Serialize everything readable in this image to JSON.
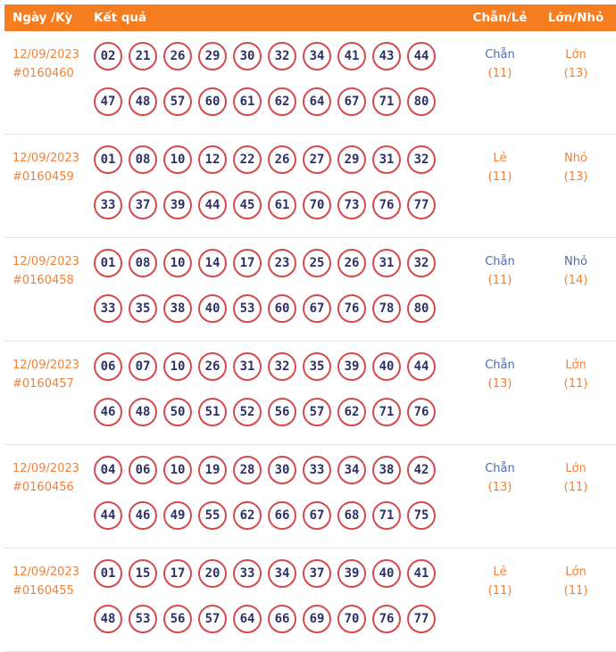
{
  "colors": {
    "header_bg": "#f57c1f",
    "text_orange": "#ef8237",
    "label_blue": "#5069a8",
    "number_navy": "#2d3166",
    "circle_border": "#d4494d",
    "divider": "#e5e5e5"
  },
  "header": {
    "col_date": "Ngày /Kỳ",
    "col_result": "Kết quả",
    "col_chan_le": "Chẵn/Lẻ",
    "col_lon_nho": "Lớn/Nhỏ"
  },
  "rows": [
    {
      "date": "12/09/2023",
      "draw_id": "#0160460",
      "numbers_line1": [
        "02",
        "21",
        "26",
        "29",
        "30",
        "32",
        "34",
        "41",
        "43",
        "44"
      ],
      "numbers_line2": [
        "47",
        "48",
        "57",
        "60",
        "61",
        "62",
        "64",
        "67",
        "71",
        "80"
      ],
      "chan_le": {
        "label": "Chẵn",
        "count": "(11)",
        "label_color": "blue"
      },
      "lon_nho": {
        "label": "Lớn",
        "count": "(13)",
        "label_color": "orange"
      }
    },
    {
      "date": "12/09/2023",
      "draw_id": "#0160459",
      "numbers_line1": [
        "01",
        "08",
        "10",
        "12",
        "22",
        "26",
        "27",
        "29",
        "31",
        "32"
      ],
      "numbers_line2": [
        "33",
        "37",
        "39",
        "44",
        "45",
        "61",
        "70",
        "73",
        "76",
        "77"
      ],
      "chan_le": {
        "label": "Lẻ",
        "count": "(11)",
        "label_color": "orange"
      },
      "lon_nho": {
        "label": "Nhỏ",
        "count": "(13)",
        "label_color": "orange"
      }
    },
    {
      "date": "12/09/2023",
      "draw_id": "#0160458",
      "numbers_line1": [
        "01",
        "08",
        "10",
        "14",
        "17",
        "23",
        "25",
        "26",
        "31",
        "32"
      ],
      "numbers_line2": [
        "33",
        "35",
        "38",
        "40",
        "53",
        "60",
        "67",
        "76",
        "78",
        "80"
      ],
      "chan_le": {
        "label": "Chẵn",
        "count": "(11)",
        "label_color": "blue"
      },
      "lon_nho": {
        "label": "Nhỏ",
        "count": "(14)",
        "label_color": "blue"
      }
    },
    {
      "date": "12/09/2023",
      "draw_id": "#0160457",
      "numbers_line1": [
        "06",
        "07",
        "10",
        "26",
        "31",
        "32",
        "35",
        "39",
        "40",
        "44"
      ],
      "numbers_line2": [
        "46",
        "48",
        "50",
        "51",
        "52",
        "56",
        "57",
        "62",
        "71",
        "76"
      ],
      "chan_le": {
        "label": "Chẵn",
        "count": "(13)",
        "label_color": "blue"
      },
      "lon_nho": {
        "label": "Lớn",
        "count": "(11)",
        "label_color": "orange"
      }
    },
    {
      "date": "12/09/2023",
      "draw_id": "#0160456",
      "numbers_line1": [
        "04",
        "06",
        "10",
        "19",
        "28",
        "30",
        "33",
        "34",
        "38",
        "42"
      ],
      "numbers_line2": [
        "44",
        "46",
        "49",
        "55",
        "62",
        "66",
        "67",
        "68",
        "71",
        "75"
      ],
      "chan_le": {
        "label": "Chẵn",
        "count": "(13)",
        "label_color": "blue"
      },
      "lon_nho": {
        "label": "Lớn",
        "count": "(11)",
        "label_color": "orange"
      }
    },
    {
      "date": "12/09/2023",
      "draw_id": "#0160455",
      "numbers_line1": [
        "01",
        "15",
        "17",
        "20",
        "33",
        "34",
        "37",
        "39",
        "40",
        "41"
      ],
      "numbers_line2": [
        "48",
        "53",
        "56",
        "57",
        "64",
        "66",
        "69",
        "70",
        "76",
        "77"
      ],
      "chan_le": {
        "label": "Lẻ",
        "count": "(11)",
        "label_color": "orange"
      },
      "lon_nho": {
        "label": "Lớn",
        "count": "(11)",
        "label_color": "orange"
      }
    }
  ]
}
